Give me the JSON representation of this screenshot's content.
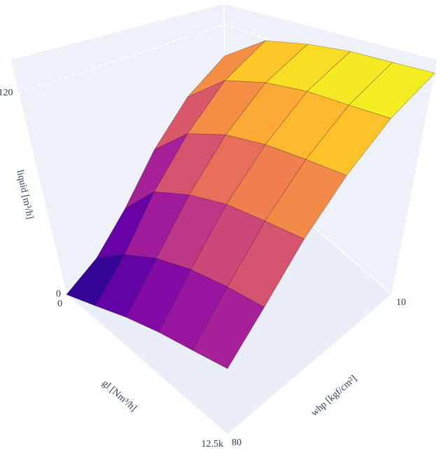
{
  "chart_data": {
    "type": "surface",
    "x_label": "gl [Nm³/h]",
    "y_label": "whp [kgf/cm²]",
    "z_label": "liquid [m³/h]",
    "x": [
      0,
      2500,
      5000,
      7500,
      10000,
      12500
    ],
    "y": [
      10,
      24,
      38,
      52,
      66,
      80
    ],
    "z": [
      [
        90,
        118,
        126,
        130,
        131,
        132
      ],
      [
        70,
        100,
        112,
        118,
        120,
        122
      ],
      [
        45,
        75,
        90,
        98,
        102,
        105
      ],
      [
        20,
        50,
        65,
        75,
        80,
        84
      ],
      [
        5,
        25,
        40,
        50,
        56,
        60
      ],
      [
        0,
        10,
        20,
        28,
        34,
        40
      ]
    ],
    "xlim": [
      0,
      12500
    ],
    "xticks": [
      0,
      {
        "value": 12500,
        "label": "12.5k"
      }
    ],
    "ylim": [
      10,
      80
    ],
    "yticks": [
      10,
      80
    ],
    "zlim": [
      0,
      140
    ],
    "zticks": [
      0,
      120
    ],
    "colorscale": [
      "#0d0887",
      "#46039f",
      "#7201a8",
      "#9c179e",
      "#bd3786",
      "#d8576b",
      "#ed7953",
      "#fb9f3a",
      "#fdca26",
      "#f0f921"
    ],
    "grid": true
  }
}
